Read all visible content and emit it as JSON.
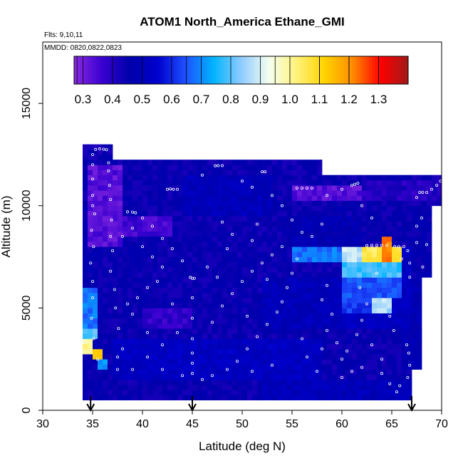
{
  "chart_data": {
    "type": "heatmap",
    "title": "ATOM1 North_America Ethane_GMI",
    "annotations": [
      "Flts: 9,10,11",
      "MMDD: 0820,0822,0823"
    ],
    "xlabel": "Latitude (deg N)",
    "ylabel": "Altitude (m)",
    "xlim": [
      30,
      70
    ],
    "ylim": [
      0,
      18000
    ],
    "x_ticks": [
      30,
      35,
      40,
      45,
      50,
      55,
      60,
      65,
      70
    ],
    "y_ticks": [
      0,
      5000,
      10000,
      15000
    ],
    "grid": false,
    "colorbar": {
      "placement": "top-inside",
      "range": [
        0.27,
        1.4
      ],
      "ticks": [
        0.3,
        0.4,
        0.5,
        0.6,
        0.7,
        0.8,
        0.9,
        1.0,
        1.1,
        1.2,
        1.3
      ],
      "tick_labels": [
        "0.3",
        "0.4",
        "0.5",
        "0.6",
        "0.7",
        "0.8",
        "0.9",
        "1.0",
        "1.1",
        "1.2",
        "1.3"
      ],
      "colors": [
        "#8a2be2",
        "#3a00d0",
        "#0000aa",
        "#0000cc",
        "#1e50ff",
        "#00b4ff",
        "#8ecbff",
        "#f4fff0",
        "#fff27a",
        "#ffd300",
        "#ff8c00",
        "#ff0000",
        "#a01a1a"
      ]
    },
    "flight_arrows_lat": [
      34.8,
      45.0,
      67.0
    ],
    "cell_size": {
      "lat": 0.5,
      "alt": 250
    },
    "regions": [
      {
        "lat": [
          34.0,
          37.0
        ],
        "alt": [
          12250,
          12900
        ],
        "value": 0.44
      },
      {
        "lat": [
          34.0,
          67.0
        ],
        "alt": [
          500,
          12250
        ],
        "value": 0.45
      },
      {
        "lat": [
          67.0,
          70.0
        ],
        "alt": [
          10000,
          11500
        ],
        "value": 0.44
      },
      {
        "lat": [
          67.0,
          69.0
        ],
        "alt": [
          6500,
          10000
        ],
        "value": 0.46
      },
      {
        "lat": [
          66.0,
          68.0
        ],
        "alt": [
          2000,
          6500
        ],
        "value": 0.48
      },
      {
        "lat": [
          34.0,
          36.0
        ],
        "alt": [
          1500,
          9500
        ],
        "value": 0.46
      },
      {
        "lat": [
          34.5,
          38.0
        ],
        "alt": [
          8000,
          12000
        ],
        "value": 0.33
      },
      {
        "lat": [
          38.0,
          43.0
        ],
        "alt": [
          8500,
          9600
        ],
        "value": 0.36
      },
      {
        "lat": [
          40.0,
          45.0
        ],
        "alt": [
          4000,
          5000
        ],
        "value": 0.38
      },
      {
        "lat": [
          55.0,
          62.0
        ],
        "alt": [
          10200,
          11000
        ],
        "value": 0.33
      },
      {
        "lat": [
          62.0,
          70.0
        ],
        "alt": [
          10200,
          11300
        ],
        "value": 0.4
      },
      {
        "lat": [
          44.0,
          53.0
        ],
        "alt": [
          9600,
          11400
        ],
        "value": 0.5
      },
      {
        "lat": [
          37.0,
          58.0
        ],
        "alt": [
          1500,
          3500
        ],
        "value": 0.52
      },
      {
        "lat": [
          52.0,
          60.0
        ],
        "alt": [
          4000,
          6500
        ],
        "value": 0.5
      },
      {
        "lat": [
          55.0,
          62.0
        ],
        "alt": [
          7500,
          9500
        ],
        "value": 0.48
      },
      {
        "lat": [
          60.0,
          67.0
        ],
        "alt": [
          4000,
          8000
        ],
        "value": 0.52
      },
      {
        "lat": [
          55.0,
          60.0
        ],
        "alt": [
          7300,
          8000
        ],
        "value": 0.68
      },
      {
        "lat": [
          60.0,
          62.0
        ],
        "alt": [
          7300,
          8000
        ],
        "value": 0.88
      },
      {
        "lat": [
          62.0,
          64.0
        ],
        "alt": [
          7300,
          8000
        ],
        "value": 1.05
      },
      {
        "lat": [
          64.0,
          65.0
        ],
        "alt": [
          7000,
          8600
        ],
        "value": 1.22
      },
      {
        "lat": [
          65.0,
          66.0
        ],
        "alt": [
          7000,
          8000
        ],
        "value": 1.08
      },
      {
        "lat": [
          60.0,
          66.0
        ],
        "alt": [
          6500,
          7300
        ],
        "value": 0.78
      },
      {
        "lat": [
          60.0,
          66.0
        ],
        "alt": [
          5500,
          6500
        ],
        "value": 0.65
      },
      {
        "lat": [
          63.0,
          65.0
        ],
        "alt": [
          4800,
          5600
        ],
        "value": 0.86
      },
      {
        "lat": [
          60.0,
          63.0
        ],
        "alt": [
          4800,
          5600
        ],
        "value": 0.62
      },
      {
        "lat": [
          34.0,
          35.5
        ],
        "alt": [
          4000,
          6000
        ],
        "value": 0.68
      },
      {
        "lat": [
          34.0,
          35.5
        ],
        "alt": [
          3500,
          4000
        ],
        "value": 0.8
      },
      {
        "lat": [
          34.0,
          35.0
        ],
        "alt": [
          2800,
          3500
        ],
        "value": 1.0
      },
      {
        "lat": [
          35.0,
          36.0
        ],
        "alt": [
          2500,
          3000
        ],
        "value": 1.1
      },
      {
        "lat": [
          35.5,
          36.5
        ],
        "alt": [
          2000,
          2500
        ],
        "value": 0.7
      },
      {
        "lat": [
          52.0,
          67.0
        ],
        "alt": [
          500,
          1500
        ],
        "value": 0.5
      },
      {
        "lat": [
          54.0,
          58.0
        ],
        "alt": [
          11500,
          12250
        ],
        "value": 0.44
      },
      {
        "lat": [
          58.0,
          70.0
        ],
        "alt": [
          11500,
          12250
        ],
        "value": 0.0
      }
    ],
    "points": [
      [
        35.3,
        12750
      ],
      [
        35.7,
        12780
      ],
      [
        36.1,
        12760
      ],
      [
        36.4,
        12740
      ],
      [
        35.0,
        12500
      ],
      [
        35.0,
        12000
      ],
      [
        36.6,
        12100
      ],
      [
        36.6,
        11700
      ],
      [
        35.0,
        11300
      ],
      [
        36.7,
        11000
      ],
      [
        35.0,
        10500
      ],
      [
        36.8,
        10300
      ],
      [
        35.0,
        10000
      ],
      [
        35.2,
        9600
      ],
      [
        36.9,
        9300
      ],
      [
        34.9,
        8800
      ],
      [
        36.8,
        8500
      ],
      [
        35.1,
        8000
      ],
      [
        37.0,
        7800
      ],
      [
        34.8,
        7200
      ],
      [
        36.8,
        6800
      ],
      [
        35.0,
        6300
      ],
      [
        37.2,
        5900
      ],
      [
        35.0,
        5500
      ],
      [
        37.3,
        5000
      ],
      [
        34.9,
        4500
      ],
      [
        37.6,
        4000
      ],
      [
        35.1,
        3500
      ],
      [
        38.0,
        3000
      ],
      [
        35.5,
        2500
      ],
      [
        37.5,
        2000
      ],
      [
        38.5,
        9700
      ],
      [
        39.0,
        9690
      ],
      [
        39.3,
        9650
      ],
      [
        40.0,
        9400
      ],
      [
        41.0,
        9000
      ],
      [
        42.0,
        8400
      ],
      [
        43.0,
        7900
      ],
      [
        44.0,
        7300
      ],
      [
        44.8,
        6500
      ],
      [
        45.0,
        6450
      ],
      [
        45.2,
        6450
      ],
      [
        45.0,
        5500
      ],
      [
        45.0,
        4500
      ],
      [
        45.0,
        3500
      ],
      [
        45.0,
        2800
      ],
      [
        45.0,
        2300
      ],
      [
        45.0,
        1800
      ],
      [
        42.5,
        10800
      ],
      [
        42.8,
        10820
      ],
      [
        43.1,
        10800
      ],
      [
        43.5,
        10800
      ],
      [
        46.0,
        11500
      ],
      [
        47.3,
        11950
      ],
      [
        47.6,
        11960
      ],
      [
        48.0,
        11960
      ],
      [
        50.0,
        11200
      ],
      [
        51.0,
        10900
      ],
      [
        52.0,
        11660
      ],
      [
        52.3,
        11660
      ],
      [
        53.0,
        10500
      ],
      [
        54.0,
        10000
      ],
      [
        55.0,
        9300
      ],
      [
        56.0,
        8700
      ],
      [
        57.0,
        8500
      ],
      [
        58.0,
        9100
      ],
      [
        55.5,
        10860
      ],
      [
        56.0,
        10860
      ],
      [
        56.5,
        10860
      ],
      [
        57.0,
        10860
      ],
      [
        58.5,
        10500
      ],
      [
        60.0,
        10800
      ],
      [
        61.0,
        11000
      ],
      [
        61.3,
        11050
      ],
      [
        61.6,
        11100
      ],
      [
        62.0,
        10000
      ],
      [
        63.0,
        9400
      ],
      [
        62.5,
        8050
      ],
      [
        63.0,
        8060
      ],
      [
        63.5,
        8060
      ],
      [
        64.0,
        8060
      ],
      [
        64.5,
        8060
      ],
      [
        65.3,
        8000
      ],
      [
        65.7,
        8000
      ],
      [
        66.2,
        8000
      ],
      [
        66.6,
        7800
      ],
      [
        66.8,
        7200
      ],
      [
        66.5,
        3200
      ],
      [
        66.7,
        2800
      ],
      [
        66.8,
        2200
      ],
      [
        66.6,
        1600
      ],
      [
        65.8,
        1200
      ],
      [
        65.5,
        900
      ],
      [
        64.8,
        1300
      ],
      [
        64.0,
        1800
      ],
      [
        62.0,
        2100
      ],
      [
        60.0,
        2500
      ],
      [
        58.0,
        3000
      ],
      [
        56.0,
        3500
      ],
      [
        67.5,
        10400
      ],
      [
        67.8,
        10650
      ],
      [
        68.1,
        10650
      ],
      [
        68.5,
        10650
      ],
      [
        69.0,
        10800
      ],
      [
        69.5,
        11000
      ],
      [
        69.9,
        11200
      ],
      [
        68.0,
        9400
      ],
      [
        67.5,
        8200
      ],
      [
        68.1,
        7000
      ],
      [
        66.8,
        6500
      ],
      [
        40.5,
        2600
      ],
      [
        42.0,
        3200
      ],
      [
        43.5,
        3800
      ],
      [
        47.0,
        4300
      ],
      [
        48.0,
        5100
      ],
      [
        49.0,
        5700
      ],
      [
        50.0,
        6300
      ],
      [
        51.0,
        6800
      ],
      [
        52.0,
        7200
      ],
      [
        53.0,
        7600
      ],
      [
        54.0,
        8000
      ],
      [
        55.5,
        7400
      ],
      [
        55.0,
        6700
      ],
      [
        54.5,
        6000
      ],
      [
        54.0,
        5300
      ],
      [
        53.5,
        4800
      ],
      [
        52.5,
        4200
      ],
      [
        51.5,
        3600
      ],
      [
        50.5,
        3000
      ],
      [
        49.5,
        2400
      ],
      [
        48.5,
        2000
      ],
      [
        47.0,
        1700
      ],
      [
        46.0,
        1500
      ],
      [
        39.0,
        8900
      ],
      [
        38.0,
        8500
      ],
      [
        40.0,
        8000
      ],
      [
        41.0,
        7500
      ],
      [
        42.0,
        7000
      ],
      [
        41.5,
        6300
      ],
      [
        40.5,
        6000
      ],
      [
        39.5,
        5500
      ],
      [
        38.5,
        5200
      ],
      [
        39.0,
        4700
      ],
      [
        40.5,
        3800
      ],
      [
        43.0,
        5200
      ],
      [
        46.5,
        7000
      ],
      [
        47.5,
        6500
      ],
      [
        48.5,
        7900
      ],
      [
        49.0,
        8600
      ],
      [
        48.0,
        9200
      ],
      [
        51.5,
        9100
      ],
      [
        51.0,
        8300
      ],
      [
        52.5,
        6400
      ],
      [
        50.5,
        4600
      ],
      [
        58.5,
        6100
      ],
      [
        58.0,
        5400
      ],
      [
        59.0,
        4700
      ],
      [
        58.5,
        3900
      ],
      [
        59.5,
        3300
      ],
      [
        60.5,
        2900
      ],
      [
        61.5,
        3700
      ],
      [
        62.0,
        4400
      ],
      [
        62.5,
        5200
      ],
      [
        61.8,
        6000
      ],
      [
        63.5,
        6700
      ],
      [
        64.2,
        5400
      ],
      [
        64.8,
        4600
      ],
      [
        65.2,
        3900
      ],
      [
        63.0,
        3200
      ],
      [
        64.0,
        2500
      ],
      [
        61.0,
        1900
      ],
      [
        60.0,
        1600
      ],
      [
        57.5,
        1900
      ],
      [
        56.5,
        2600
      ],
      [
        53.0,
        2200
      ],
      [
        51.0,
        1900
      ],
      [
        44.0,
        1700
      ],
      [
        42.0,
        2000
      ],
      [
        39.0,
        2000
      ],
      [
        37.5,
        2600
      ],
      [
        66.0,
        7400
      ],
      [
        67.5,
        9000
      ],
      [
        68.5,
        8100
      ]
    ]
  }
}
